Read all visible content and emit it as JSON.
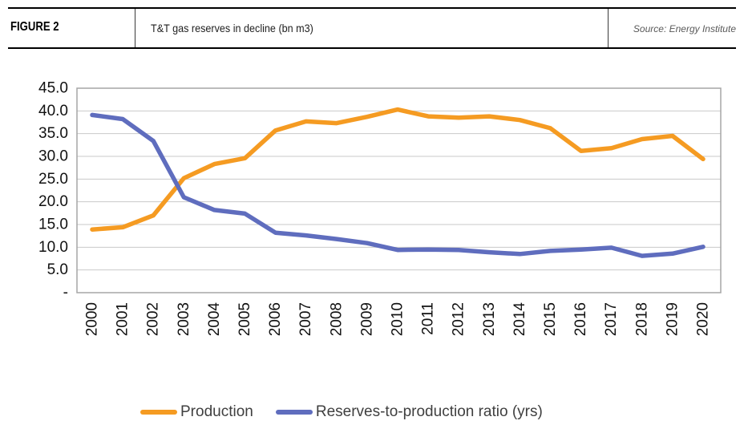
{
  "header": {
    "figure_label": "FIGURE 2",
    "title": "T&T gas reserves in decline (bn m3)",
    "source": "Source: Energy Institute"
  },
  "chart_data": {
    "type": "line",
    "title": "T&T gas reserves in decline (bn m3)",
    "xlabel": "",
    "ylabel": "",
    "categories": [
      "2000",
      "2001",
      "2002",
      "2003",
      "2004",
      "2005",
      "2006",
      "2007",
      "2008",
      "2009",
      "2010",
      "2011",
      "2012",
      "2013",
      "2014",
      "2015",
      "2016",
      "2017",
      "2018",
      "2019",
      "2020"
    ],
    "series": [
      {
        "name": "Production",
        "color": "#F59B22",
        "values": [
          13.9,
          14.4,
          17.0,
          25.2,
          28.3,
          29.6,
          35.7,
          37.7,
          37.3,
          38.7,
          40.3,
          38.8,
          38.5,
          38.8,
          38.0,
          36.2,
          31.2,
          31.8,
          33.8,
          34.5,
          29.4
        ]
      },
      {
        "name": "Reserves-to-production ratio (yrs)",
        "color": "#5F6DBE",
        "values": [
          39.1,
          38.2,
          33.4,
          21.0,
          18.2,
          17.4,
          13.2,
          12.6,
          11.8,
          10.9,
          9.4,
          9.5,
          9.4,
          8.9,
          8.5,
          9.2,
          9.5,
          9.9,
          8.1,
          8.6,
          10.1
        ]
      }
    ],
    "ylim": [
      0,
      45
    ],
    "yticks": [
      {
        "value": 0,
        "label": "-"
      },
      {
        "value": 5,
        "label": "5.0"
      },
      {
        "value": 10,
        "label": "10.0"
      },
      {
        "value": 15,
        "label": "15.0"
      },
      {
        "value": 20,
        "label": "20.0"
      },
      {
        "value": 25,
        "label": "25.0"
      },
      {
        "value": 30,
        "label": "30.0"
      },
      {
        "value": 35,
        "label": "35.0"
      },
      {
        "value": 40,
        "label": "40.0"
      },
      {
        "value": 45,
        "label": "45.0"
      }
    ],
    "grid": true,
    "legend_position": "bottom",
    "gridline_color": "#C9C9C9",
    "border_color": "#A6A6A6",
    "tick_text_color": "#111111"
  }
}
